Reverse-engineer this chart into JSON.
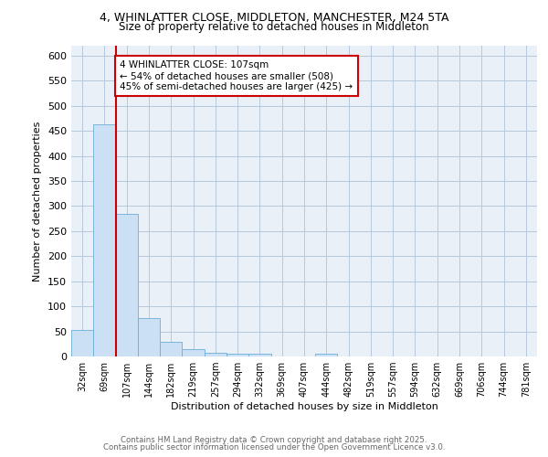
{
  "title_line1": "4, WHINLATTER CLOSE, MIDDLETON, MANCHESTER, M24 5TA",
  "title_line2": "Size of property relative to detached houses in Middleton",
  "xlabel": "Distribution of detached houses by size in Middleton",
  "ylabel": "Number of detached properties",
  "bin_labels": [
    "32sqm",
    "69sqm",
    "107sqm",
    "144sqm",
    "182sqm",
    "219sqm",
    "257sqm",
    "294sqm",
    "332sqm",
    "369sqm",
    "407sqm",
    "444sqm",
    "482sqm",
    "519sqm",
    "557sqm",
    "594sqm",
    "632sqm",
    "669sqm",
    "706sqm",
    "744sqm",
    "781sqm"
  ],
  "bar_heights": [
    53,
    463,
    285,
    76,
    30,
    14,
    8,
    5,
    6,
    0,
    0,
    5,
    0,
    0,
    0,
    0,
    0,
    0,
    0,
    0,
    0
  ],
  "bar_color": "#cce0f5",
  "bar_edge_color": "#6baed6",
  "red_line_index": 2,
  "annotation_text": "4 WHINLATTER CLOSE: 107sqm\n← 54% of detached houses are smaller (508)\n45% of semi-detached houses are larger (425) →",
  "annotation_box_color": "#ffffff",
  "annotation_box_edge_color": "#cc0000",
  "red_line_color": "#cc0000",
  "ylim": [
    0,
    620
  ],
  "yticks": [
    0,
    50,
    100,
    150,
    200,
    250,
    300,
    350,
    400,
    450,
    500,
    550,
    600
  ],
  "footer_line1": "Contains HM Land Registry data © Crown copyright and database right 2025.",
  "footer_line2": "Contains public sector information licensed under the Open Government Licence v3.0.",
  "plot_bg_color": "#eaf0f8"
}
